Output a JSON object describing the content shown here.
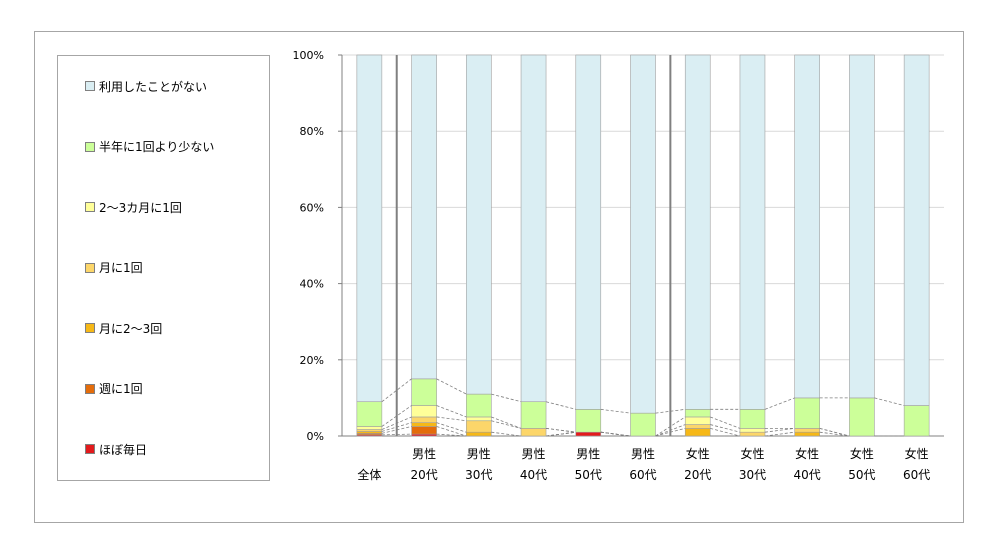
{
  "chart_data": {
    "type": "bar",
    "stacked": true,
    "title": "",
    "xlabel": "",
    "ylabel": "",
    "ylim": [
      0,
      100
    ],
    "y_ticks": [
      "0%",
      "20%",
      "40%",
      "60%",
      "80%",
      "100%"
    ],
    "y_tick_values": [
      0,
      20,
      40,
      60,
      80,
      100
    ],
    "grid": true,
    "legend_position": "left",
    "group_separators_after": [
      0,
      5
    ],
    "categories": [
      {
        "line1": "全体",
        "line2": ""
      },
      {
        "line1": "男性",
        "line2": "20代"
      },
      {
        "line1": "男性",
        "line2": "30代"
      },
      {
        "line1": "男性",
        "line2": "40代"
      },
      {
        "line1": "男性",
        "line2": "50代"
      },
      {
        "line1": "男性",
        "line2": "60代"
      },
      {
        "line1": "女性",
        "line2": "20代"
      },
      {
        "line1": "女性",
        "line2": "30代"
      },
      {
        "line1": "女性",
        "line2": "40代"
      },
      {
        "line1": "女性",
        "line2": "50代"
      },
      {
        "line1": "女性",
        "line2": "60代"
      }
    ],
    "series": [
      {
        "name": "ほぼ毎日",
        "color": "#e31a1c",
        "values": [
          0.3,
          0.5,
          0,
          0,
          1,
          0,
          0,
          0,
          0,
          0,
          0
        ]
      },
      {
        "name": "週に1回",
        "color": "#e46c0a",
        "values": [
          0.4,
          2,
          0,
          0,
          0,
          0,
          0,
          0,
          0,
          0,
          0
        ]
      },
      {
        "name": "月に2〜3回",
        "color": "#f6b817",
        "values": [
          0.5,
          1,
          1,
          0,
          0,
          0,
          2,
          0,
          1,
          0,
          0
        ]
      },
      {
        "name": "月に1回",
        "color": "#fcd66a",
        "values": [
          0.5,
          1.5,
          3,
          2,
          0,
          0,
          1,
          1,
          1,
          0,
          0
        ]
      },
      {
        "name": "2〜3カ月に1回",
        "color": "#ffff99",
        "values": [
          0.8,
          3,
          1,
          0,
          0,
          0,
          2,
          1,
          0,
          0,
          0
        ]
      },
      {
        "name": "半年に1回より少ない",
        "color": "#ccff99",
        "values": [
          6.5,
          7,
          6,
          7,
          6,
          6,
          2,
          5,
          8,
          10,
          8
        ]
      },
      {
        "name": "利用したことがない",
        "color": "#daeef3",
        "values": [
          91,
          85,
          89,
          91,
          93,
          94,
          93,
          93,
          90,
          90,
          92
        ]
      }
    ]
  }
}
